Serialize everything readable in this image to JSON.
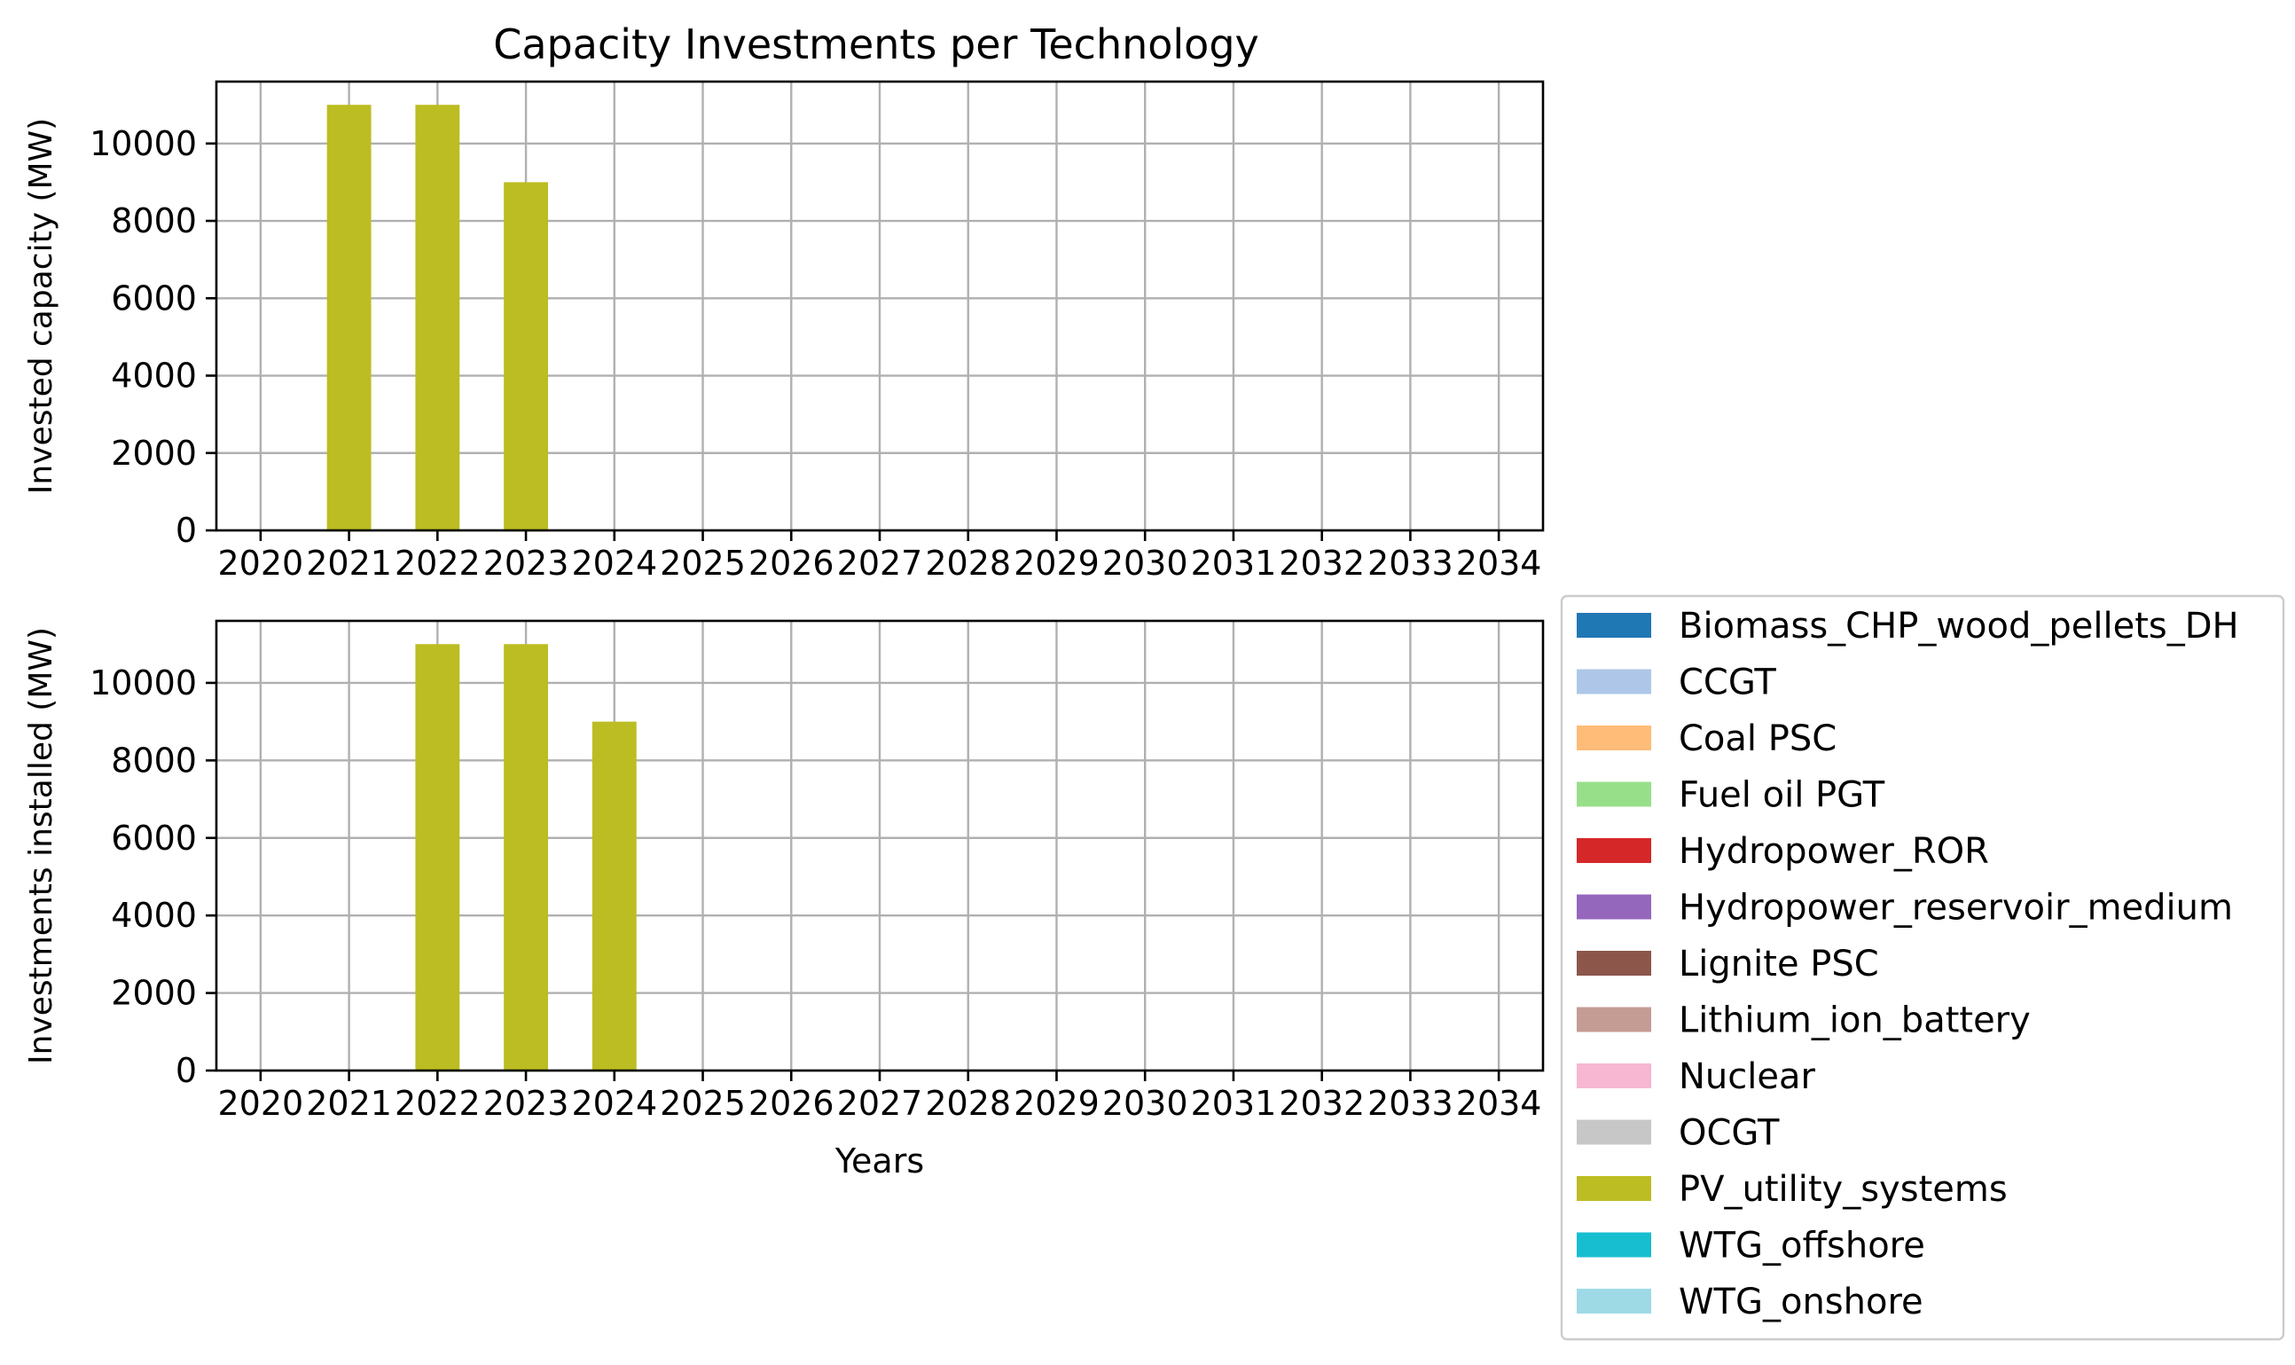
{
  "chart_data": {
    "type": "bar",
    "title": "Capacity Investments per Technology",
    "categories": [
      "2020",
      "2021",
      "2022",
      "2023",
      "2024",
      "2025",
      "2026",
      "2027",
      "2028",
      "2029",
      "2030",
      "2031",
      "2032",
      "2033",
      "2034"
    ],
    "grid": true,
    "legend_placement": "right",
    "technologies": [
      {
        "name": "Biomass_CHP_wood_pellets_DH",
        "color": "#1f77b4"
      },
      {
        "name": "CCGT",
        "color": "#aec7e8"
      },
      {
        "name": "Coal PSC",
        "color": "#ffbb78"
      },
      {
        "name": "Fuel oil PGT",
        "color": "#98df8a"
      },
      {
        "name": "Hydropower_ROR",
        "color": "#d62728"
      },
      {
        "name": "Hydropower_reservoir_medium",
        "color": "#9467bd"
      },
      {
        "name": "Lignite PSC",
        "color": "#8c564b"
      },
      {
        "name": "Lithium_ion_battery",
        "color": "#c49c94"
      },
      {
        "name": "Nuclear",
        "color": "#f7b6d2"
      },
      {
        "name": "OCGT",
        "color": "#c7c7c7"
      },
      {
        "name": "PV_utility_systems",
        "color": "#bcbd22"
      },
      {
        "name": "WTG_offshore",
        "color": "#17becf"
      },
      {
        "name": "WTG_onshore",
        "color": "#9edae5"
      }
    ],
    "subplots": [
      {
        "ylabel": "Invested capacity (MW)",
        "xlabel": "",
        "ylim": [
          0,
          11600
        ],
        "yticks": [
          "0",
          "2000",
          "4000",
          "6000",
          "8000",
          "10000"
        ],
        "series": [
          {
            "name": "PV_utility_systems",
            "values": [
              0,
              11000,
              11000,
              9000,
              0,
              0,
              0,
              0,
              0,
              0,
              0,
              0,
              0,
              0,
              0
            ]
          }
        ]
      },
      {
        "ylabel": "Investments installed (MW)",
        "xlabel": "Years",
        "ylim": [
          0,
          11600
        ],
        "yticks": [
          "0",
          "2000",
          "4000",
          "6000",
          "8000",
          "10000"
        ],
        "series": [
          {
            "name": "PV_utility_systems",
            "values": [
              0,
              0,
              11000,
              11000,
              9000,
              0,
              0,
              0,
              0,
              0,
              0,
              0,
              0,
              0,
              0
            ]
          }
        ]
      }
    ]
  }
}
